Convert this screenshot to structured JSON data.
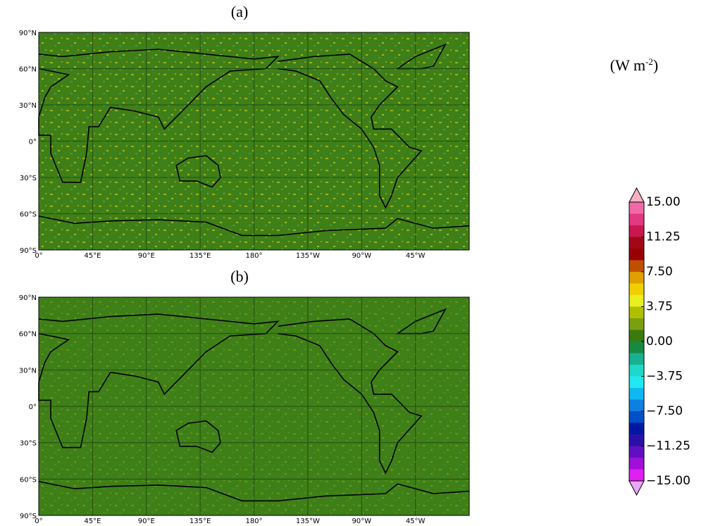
{
  "panels": [
    {
      "label": "(a)"
    },
    {
      "label": "(b)"
    }
  ],
  "lat_ticks": [
    {
      "value": 90,
      "label": "90°N"
    },
    {
      "value": 60,
      "label": "60°N"
    },
    {
      "value": 30,
      "label": "30°N"
    },
    {
      "value": 0,
      "label": "0°"
    },
    {
      "value": -30,
      "label": "30°S"
    },
    {
      "value": -60,
      "label": "60°S"
    },
    {
      "value": -90,
      "label": "90°S"
    }
  ],
  "lon_ticks": [
    {
      "value": 0,
      "label": "0°"
    },
    {
      "value": 45,
      "label": "45°E"
    },
    {
      "value": 90,
      "label": "90°E"
    },
    {
      "value": 135,
      "label": "135°E"
    },
    {
      "value": 180,
      "label": "180°"
    },
    {
      "value": 225,
      "label": "135°W"
    },
    {
      "value": 270,
      "label": "90°W"
    },
    {
      "value": 315,
      "label": "45°W"
    }
  ],
  "lat_lim": [
    -90,
    90
  ],
  "lon_lim": [
    0,
    360
  ],
  "colorbar": {
    "unit_open": "(W m",
    "unit_sup": "-2",
    "unit_close": ")",
    "lim": [
      -15,
      15
    ],
    "ticks": [
      {
        "value": 15,
        "label": "15.00"
      },
      {
        "value": 11.25,
        "label": "11.25"
      },
      {
        "value": 7.5,
        "label": "7.50"
      },
      {
        "value": 3.75,
        "label": "3.75"
      },
      {
        "value": 0,
        "label": "0.00"
      },
      {
        "value": -3.75,
        "label": "−3.75"
      },
      {
        "value": -7.5,
        "label": "−7.50"
      },
      {
        "value": -11.25,
        "label": "−11.25"
      },
      {
        "value": -15,
        "label": "−15.00"
      }
    ],
    "colors": [
      "#f06aa8",
      "#e03a80",
      "#c81850",
      "#a00818",
      "#980000",
      "#c05000",
      "#e0a000",
      "#f0d000",
      "#e8f020",
      "#b0c000",
      "#7aa010",
      "#3a7a10",
      "#1a8840",
      "#18b090",
      "#20d8c8",
      "#20e8f0",
      "#10b8f0",
      "#1080e0",
      "#0050c8",
      "#0018a0",
      "#2a10a8",
      "#6010c0",
      "#a010d8",
      "#e020f0"
    ],
    "over_color": "#f8b0c0",
    "under_color": "#e8a8f8"
  },
  "map_color": "#3f7f18"
}
